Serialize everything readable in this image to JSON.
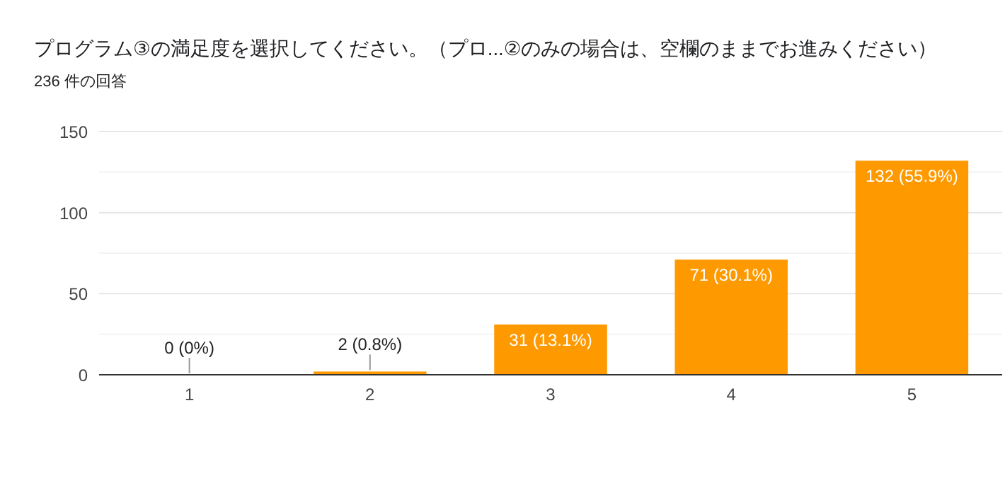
{
  "chart_data": {
    "type": "bar",
    "title": "プログラム③の満足度を選択してください。（プロ...②のみの場合は、空欄のままでお進みください）",
    "subtitle": "236 件の回答",
    "categories": [
      "1",
      "2",
      "3",
      "4",
      "5"
    ],
    "values": [
      0,
      2,
      31,
      71,
      132
    ],
    "color": "#ff9900",
    "value_labels": [
      "0 (0%)",
      "2 (0.8%)",
      "31 (13.1%)",
      "71 (30.1%)",
      "132 (55.9%)"
    ],
    "ylim": [
      0,
      150
    ],
    "yticks": [
      0,
      {
        "value": 25,
        "label": null
      },
      50,
      {
        "value": 75,
        "label": null
      },
      100,
      {
        "value": 125,
        "label": null
      },
      150
    ],
    "grid": true
  }
}
